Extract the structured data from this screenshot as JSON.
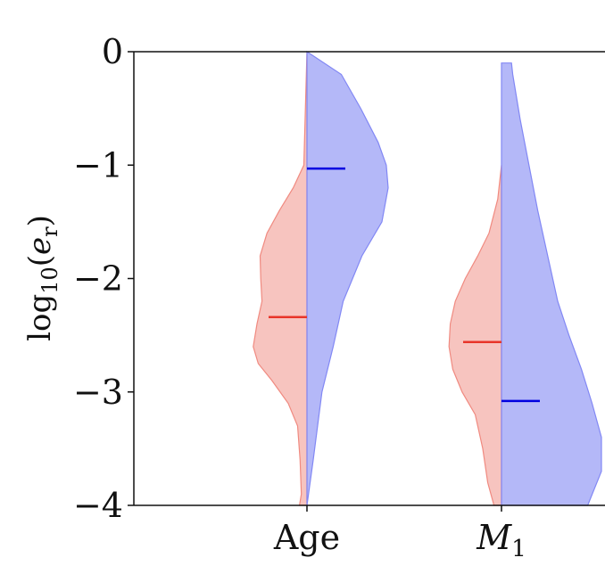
{
  "chart_data": {
    "type": "violin",
    "ylabel": "log10(e_r)",
    "ylim": [
      -4,
      0
    ],
    "yticks": [
      {
        "value": 0,
        "label": "0"
      },
      {
        "value": -1,
        "label": "−1"
      },
      {
        "value": -2,
        "label": "−2"
      },
      {
        "value": -3,
        "label": "−3"
      },
      {
        "value": -4,
        "label": "−4"
      }
    ],
    "categories": [
      {
        "label": "Age",
        "label_sub": "",
        "italic": false
      },
      {
        "label": "M",
        "label_sub": "1",
        "italic": true
      }
    ],
    "series": [
      {
        "side": "left",
        "color": "#f08a80",
        "median_color": "#e8352a",
        "medians": [
          -2.34,
          -2.56
        ],
        "profiles": [
          [
            [
              -4.0,
              0.12
            ],
            [
              -3.9,
              0.09
            ],
            [
              -3.6,
              0.11
            ],
            [
              -3.3,
              0.15
            ],
            [
              -3.1,
              0.3
            ],
            [
              -2.9,
              0.56
            ],
            [
              -2.75,
              0.78
            ],
            [
              -2.6,
              0.86
            ],
            [
              -2.4,
              0.8
            ],
            [
              -2.2,
              0.72
            ],
            [
              -2.0,
              0.74
            ],
            [
              -1.8,
              0.75
            ],
            [
              -1.6,
              0.64
            ],
            [
              -1.4,
              0.44
            ],
            [
              -1.2,
              0.22
            ],
            [
              -1.0,
              0.05
            ],
            [
              0.0,
              0.0
            ]
          ],
          [
            [
              -4.0,
              0.12
            ],
            [
              -3.8,
              0.22
            ],
            [
              -3.5,
              0.3
            ],
            [
              -3.2,
              0.42
            ],
            [
              -3.0,
              0.63
            ],
            [
              -2.8,
              0.78
            ],
            [
              -2.6,
              0.84
            ],
            [
              -2.4,
              0.82
            ],
            [
              -2.2,
              0.74
            ],
            [
              -2.0,
              0.58
            ],
            [
              -1.8,
              0.38
            ],
            [
              -1.6,
              0.2
            ],
            [
              -1.3,
              0.06
            ],
            [
              -1.0,
              0.0
            ]
          ]
        ]
      },
      {
        "side": "right",
        "color": "#8288f4",
        "median_color": "#0000e0",
        "medians": [
          -1.03,
          -3.08
        ],
        "profiles": [
          [
            [
              -4.0,
              0.0
            ],
            [
              -3.6,
              0.1
            ],
            [
              -3.0,
              0.24
            ],
            [
              -2.6,
              0.42
            ],
            [
              -2.2,
              0.58
            ],
            [
              -1.8,
              0.88
            ],
            [
              -1.5,
              1.2
            ],
            [
              -1.2,
              1.3
            ],
            [
              -1.0,
              1.27
            ],
            [
              -0.8,
              1.14
            ],
            [
              -0.5,
              0.86
            ],
            [
              -0.2,
              0.55
            ],
            [
              0.0,
              0.0
            ]
          ],
          [
            [
              -4.0,
              1.38
            ],
            [
              -3.7,
              1.6
            ],
            [
              -3.4,
              1.6
            ],
            [
              -3.1,
              1.45
            ],
            [
              -2.8,
              1.28
            ],
            [
              -2.5,
              1.08
            ],
            [
              -2.2,
              0.9
            ],
            [
              -1.8,
              0.74
            ],
            [
              -1.4,
              0.58
            ],
            [
              -1.0,
              0.44
            ],
            [
              -0.6,
              0.3
            ],
            [
              -0.2,
              0.18
            ],
            [
              -0.1,
              0.16
            ],
            [
              -0.1,
              0.0
            ]
          ]
        ]
      }
    ]
  }
}
